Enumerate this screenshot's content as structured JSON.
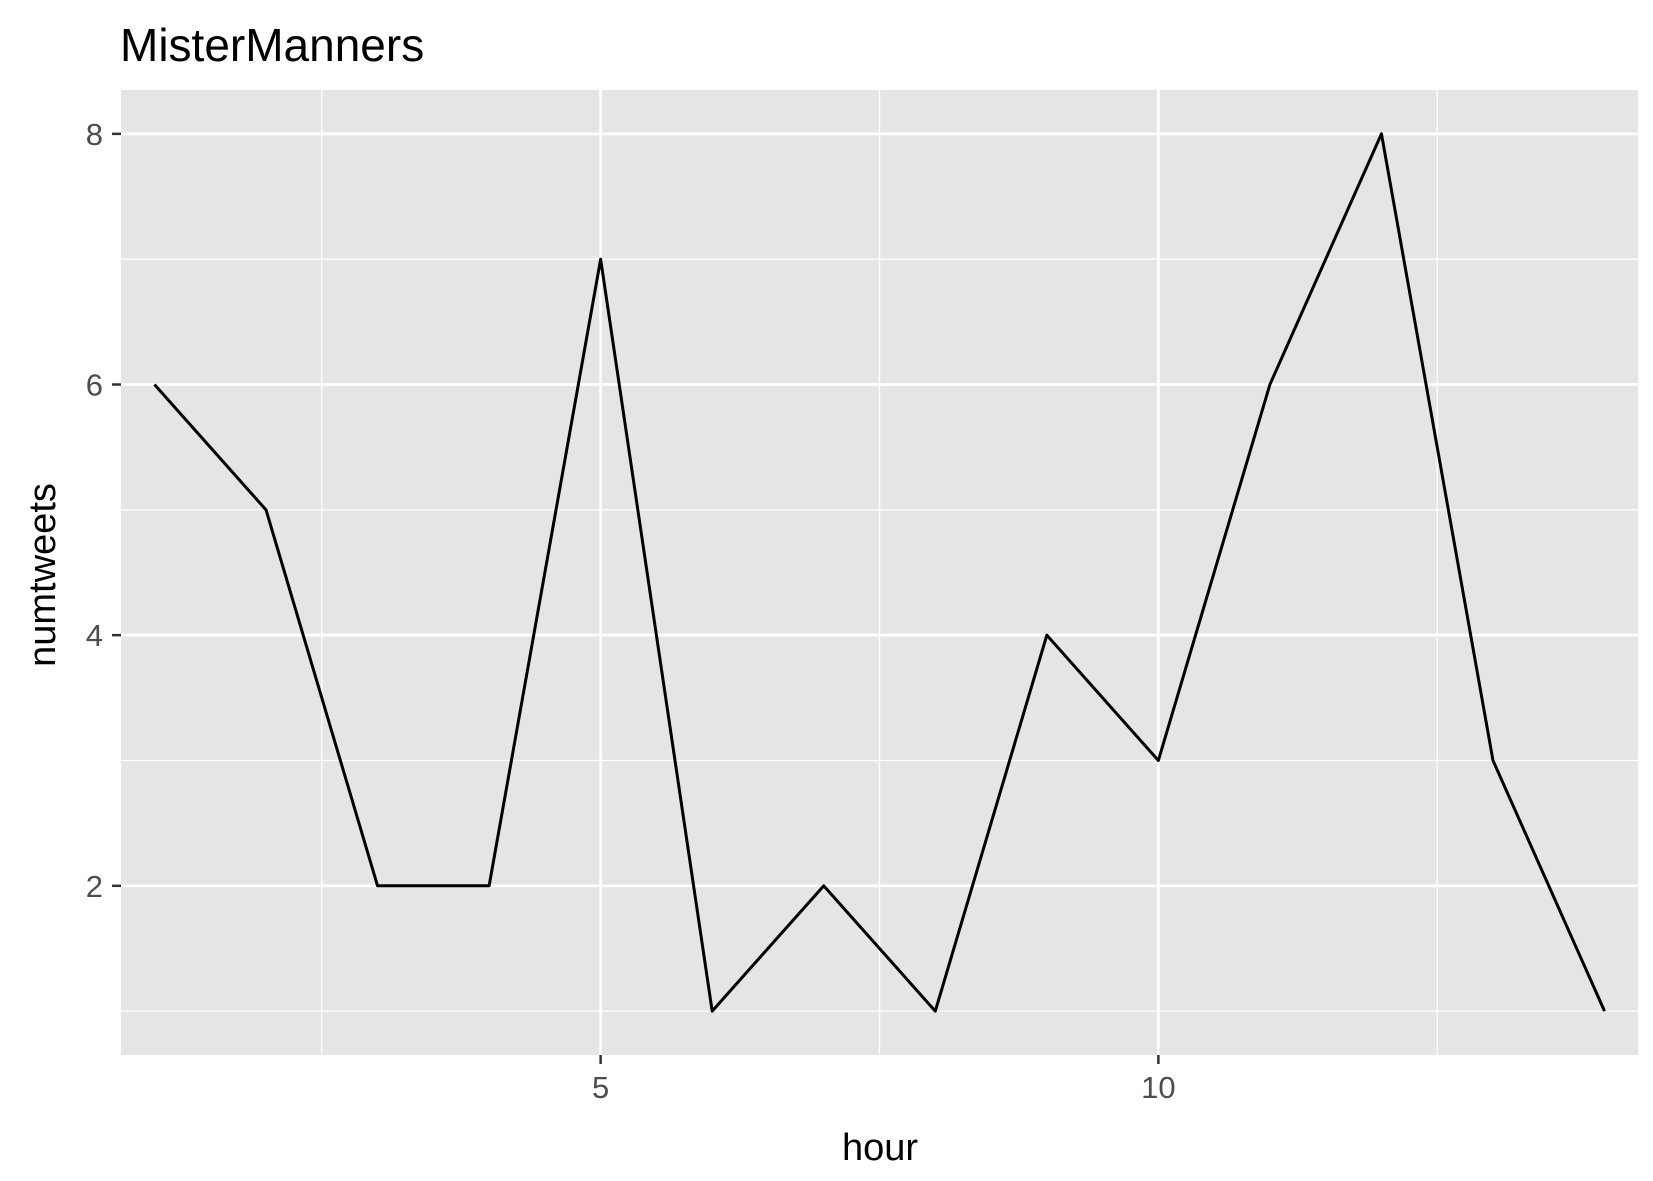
{
  "chart_data": {
    "type": "line",
    "title": "MisterManners",
    "xlabel": "hour",
    "ylabel": "numtweets",
    "xlim": [
      0.7,
      14.3
    ],
    "ylim": [
      0.65,
      8.35
    ],
    "x_ticks": [
      5,
      10
    ],
    "y_ticks": [
      2,
      4,
      6,
      8
    ],
    "x_minor_ticks": [
      2.5,
      7.5,
      12.5
    ],
    "y_minor_ticks": [
      1,
      3,
      5,
      7
    ],
    "grid": true,
    "legend": "none",
    "colors": {
      "panel_background": "#e5e5e5",
      "grid": "#ffffff",
      "line": "#000000",
      "tick_label": "#4d4d4d"
    },
    "series": [
      {
        "x": [
          1,
          2,
          3,
          4,
          5,
          6,
          7,
          8,
          9,
          10,
          11,
          12,
          13,
          14
        ],
        "values": [
          6,
          5,
          2,
          2,
          7,
          1,
          2,
          1,
          4,
          3,
          6,
          8,
          3,
          1
        ]
      }
    ]
  }
}
